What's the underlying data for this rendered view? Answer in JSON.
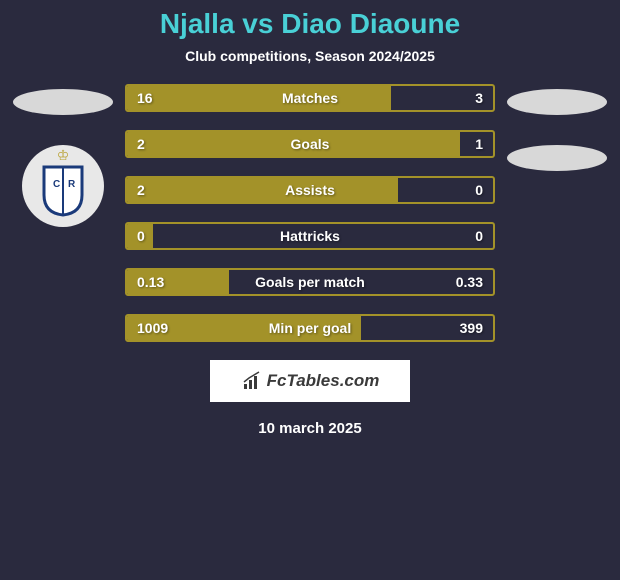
{
  "header": {
    "title": "Njalla vs Diao Diaoune",
    "subtitle": "Club competitions, Season 2024/2025"
  },
  "stats": [
    {
      "label": "Matches",
      "left_val": "16",
      "right_val": "3",
      "left_width_pct": 72
    },
    {
      "label": "Goals",
      "left_val": "2",
      "right_val": "1",
      "left_width_pct": 91
    },
    {
      "label": "Assists",
      "left_val": "2",
      "right_val": "0",
      "left_width_pct": 74
    },
    {
      "label": "Hattricks",
      "left_val": "0",
      "right_val": "0",
      "left_width_pct": 7
    },
    {
      "label": "Goals per match",
      "left_val": "0.13",
      "right_val": "0.33",
      "left_width_pct": 28
    },
    {
      "label": "Min per goal",
      "left_val": "1009",
      "right_val": "399",
      "left_width_pct": 64
    }
  ],
  "styling": {
    "bar_border_color": "#a39229",
    "bar_fill_color": "#a39229",
    "title_color": "#49d0d6",
    "background_color": "#2a2a3e"
  },
  "brand": {
    "text": "FcTables.com"
  },
  "date": "10 march 2025"
}
